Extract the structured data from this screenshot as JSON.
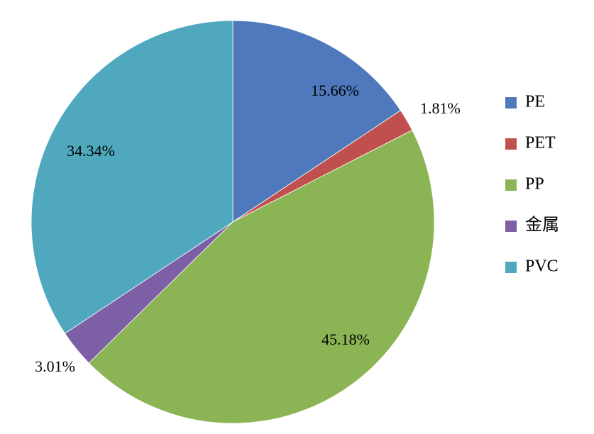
{
  "chart_data": {
    "type": "pie",
    "title": "",
    "categories": [
      "PE",
      "PET",
      "PP",
      "金属",
      "PVC"
    ],
    "values": [
      15.66,
      1.81,
      45.18,
      3.01,
      34.34
    ],
    "data_labels": [
      "15.66%",
      "1.81%",
      "45.18%",
      "3.01%",
      "34.34%"
    ],
    "colors": [
      "#4F79BC",
      "#C0504D",
      "#8BB455",
      "#7D5FA6",
      "#4FA8BE"
    ],
    "start_angle": "12 o'clock",
    "direction": "clockwise",
    "legend": {
      "position": "right",
      "entries": [
        "PE",
        "PET",
        "PP",
        "金属",
        "PVC"
      ]
    }
  }
}
